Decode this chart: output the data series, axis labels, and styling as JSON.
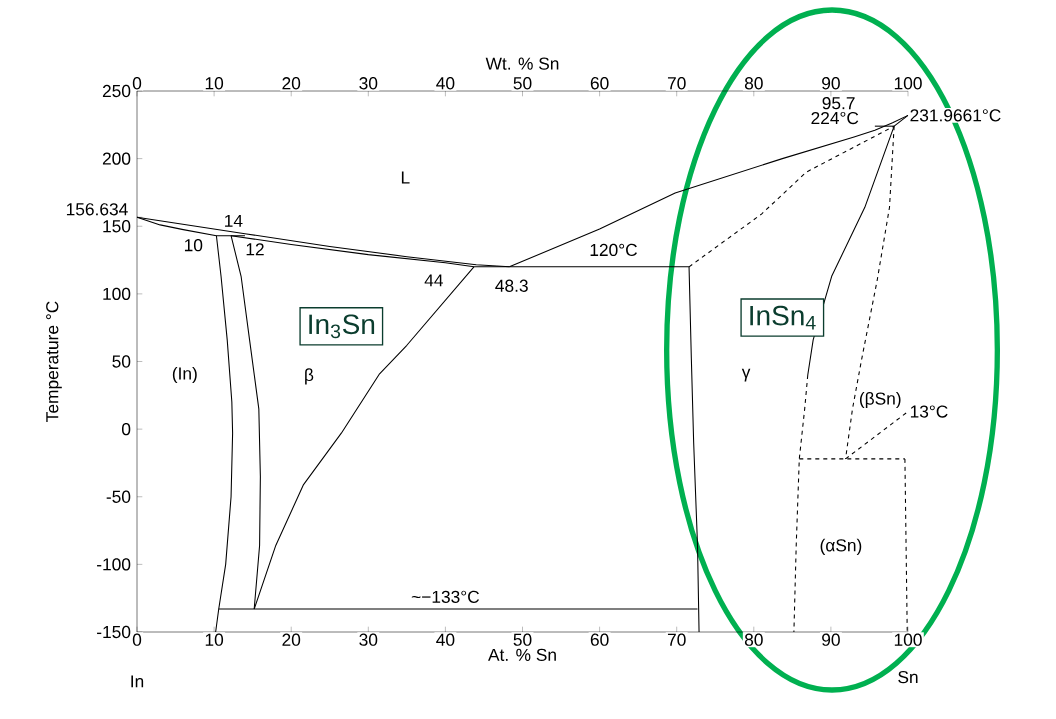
{
  "chart_data": {
    "type": "line",
    "xlabel": "At. % Sn",
    "x2label": "Wt. % Sn",
    "ylabel": "Temperature °C",
    "xlim": [
      0,
      100
    ],
    "xticks": [
      0,
      10,
      20,
      30,
      40,
      50,
      60,
      70,
      80,
      90,
      100
    ],
    "x2lim": [
      0,
      100
    ],
    "x2ticks": [
      0,
      10,
      20,
      30,
      40,
      50,
      60,
      70,
      80,
      90,
      100
    ],
    "ylim": [
      -150,
      250
    ],
    "yticks": [
      -150,
      -100,
      -50,
      0,
      50,
      100,
      {
        "value": 156.634,
        "label": "156.634"
      },
      150,
      200,
      250
    ],
    "marker": "none",
    "grid": false,
    "series": [
      {
        "color": "#000000",
        "line_style": "solid",
        "x": [
          0,
          7,
          14,
          25,
          35,
          44,
          48.3
        ],
        "values": [
          156.634,
          150.5,
          144.5,
          135,
          127.5,
          121.5,
          120
        ]
      },
      {
        "color": "#000000",
        "line_style": "solid",
        "x": [
          0,
          3,
          6,
          10.3,
          14
        ],
        "values": [
          156.634,
          151,
          147.5,
          143,
          143
        ]
      },
      {
        "color": "#000000",
        "line_style": "solid",
        "x": [
          12.2,
          20,
          30,
          40,
          43.7,
          71.6,
          71.9,
          72.2,
          72.7,
          72.9
        ],
        "values": [
          143,
          136.5,
          129,
          123,
          120,
          120,
          52,
          -10,
          -86,
          -150
        ]
      },
      {
        "color": "#000000",
        "line_style": "solid",
        "x": [
          10.3,
          10.9,
          11.7,
          12.3,
          12.4,
          12.2,
          11.5,
          10.6,
          10.2
        ],
        "values": [
          143,
          113,
          66,
          20,
          -3,
          -50,
          -100,
          -133,
          -150
        ]
      },
      {
        "color": "#000000",
        "line_style": "solid",
        "x": [
          12.2,
          13.5,
          14.6,
          15.8,
          16.0,
          15.9,
          15.2
        ],
        "values": [
          143,
          113,
          66,
          15,
          -35,
          -86,
          -133
        ]
      },
      {
        "color": "#000000",
        "line_style": "solid",
        "x": [
          43.7,
          35.0,
          31.4,
          26.5,
          21.6,
          18.0,
          15.2
        ],
        "values": [
          120,
          62,
          40.4,
          -3,
          -41,
          -86,
          -133
        ]
      },
      {
        "color": "#000000",
        "line_style": "solid",
        "x": [
          10.6,
          72.7
        ],
        "values": [
          -133,
          -133
        ]
      },
      {
        "color": "#000000",
        "line_style": "solid",
        "x": [
          48.3,
          60,
          69.8,
          83.7,
          93,
          95.7,
          98,
          100
        ],
        "values": [
          120,
          148,
          174.6,
          200,
          216,
          221,
          226.5,
          231.9661
        ]
      },
      {
        "color": "#000000",
        "line_style": "solid",
        "x": [
          95.7,
          98.2
        ],
        "values": [
          224,
          224
        ]
      },
      {
        "color": "#000000",
        "line_style": "solid",
        "x": [
          98.2,
          100
        ],
        "values": [
          224,
          231.9661
        ]
      },
      {
        "color": "#000000",
        "line_style": "dashed",
        "x": [
          71.6,
          81,
          86.8,
          98.2
        ],
        "values": [
          120,
          159,
          190,
          224
        ]
      },
      {
        "color": "#000000",
        "line_style": "solid",
        "x": [
          98.2,
          94.4,
          90.1,
          87.7,
          87.0
        ],
        "values": [
          224,
          164,
          113,
          66,
          40
        ]
      },
      {
        "color": "#000000",
        "line_style": "dashed",
        "x": [
          87.0,
          86.6,
          85.9,
          85.5,
          85.2
        ],
        "values": [
          40,
          15,
          -22,
          -86,
          -150
        ]
      },
      {
        "color": "#000000",
        "line_style": "dashed",
        "x": [
          98.2,
          97.6,
          96,
          94.0,
          92.8,
          91.9
        ],
        "values": [
          224,
          164,
          110,
          52,
          15,
          -22
        ]
      },
      {
        "color": "#000000",
        "line_style": "dashed",
        "x": [
          85.9,
          99.6
        ],
        "values": [
          -22,
          -22
        ]
      },
      {
        "color": "#000000",
        "line_style": "dashed",
        "x": [
          91.9,
          100
        ],
        "values": [
          -22,
          13
        ]
      },
      {
        "color": "#000000",
        "line_style": "dashed",
        "x": [
          99.6,
          99.9
        ],
        "values": [
          -22,
          -150
        ]
      }
    ],
    "annotations": [
      "L",
      "(In)",
      "β",
      "γ",
      "(βSn)",
      "(αSn)",
      "10",
      "12",
      "14",
      "44",
      "48.3",
      "120°C",
      "~−133°C",
      "95.7",
      "224°C",
      "231.9661°C",
      "13°C",
      "In",
      "Sn",
      "In$_{3}$Sn",
      "InSn$_{4}$"
    ]
  }
}
